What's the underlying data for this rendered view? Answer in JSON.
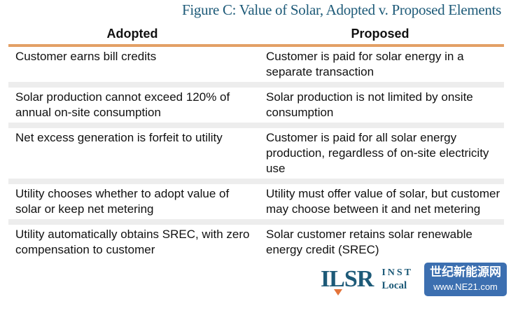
{
  "title": "Figure C: Value of Solar, Adopted v. Proposed Elements",
  "table": {
    "headers": [
      "Adopted",
      "Proposed"
    ],
    "rows": [
      [
        "Customer earns bill credits",
        "Customer is paid for solar energy in a separate transaction"
      ],
      [
        "Solar production cannot exceed 120% of annual on-site consumption",
        "Solar production is not limited by onsite consumption"
      ],
      [
        "Net excess generation is forfeit to utility",
        "Customer is paid for all solar energy production, regardless of on-site electricity use"
      ],
      [
        "Utility chooses whether to adopt value of solar or keep net metering",
        "Utility must offer value of solar, but customer may choose between it and net metering"
      ],
      [
        "Utility automatically obtains SREC, with zero compensation to customer",
        "Solar customer retains solar renewable energy credit (SREC)"
      ]
    ]
  },
  "logo": {
    "mark": "ILSR",
    "line1": "INST",
    "line2": "Local"
  },
  "watermark": {
    "cn": "世纪新能源网",
    "url": "www.NE21.com"
  },
  "colors": {
    "title": "#1d5a78",
    "header_rule": "#e3a066",
    "row_separator": "#ededed",
    "watermark": "#3c6fb0"
  }
}
